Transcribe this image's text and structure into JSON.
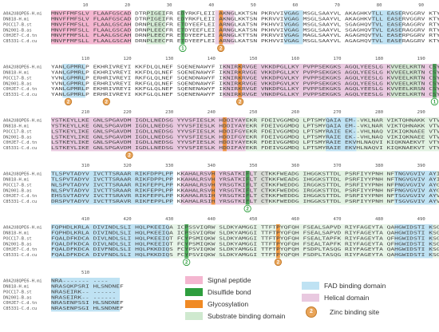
{
  "sequences": [
    "A0A2U8QPE6-H.mi",
    "DN818-H.mi",
    "POCC17-B.st",
    "DN2001-B.as",
    "C0HJE7-C.d.tn",
    "C85331-C.d.cu"
  ],
  "blocks": [
    {
      "ruler_numbers": [
        "10",
        "20",
        "30",
        "40",
        "50",
        "60",
        "70",
        "80",
        "90",
        "100"
      ],
      "rows": [
        "MNVFFMFSLV FLAAFGSCAD DTRPIGEIFR EDYRKFLEII AKNGLKKTSN PKRVVIVGAG MSGLSAAYVL AKAGHKVTLL EASERVGGRV KTYRNKEEGW",
        "MNVFFMFSLV FLAAFGSCAD DTRPIGEIFR EDYRKFLEII AKNGLKKTSN PKRVVIVGAG MSGLSAAYVL AKAGHKVTLL EASERVGGRV KTYRNKEEGW",
        "MNVFFMFSLL FLAALGSCAH DRNPLEECFR ETDYEEFLEI ARNGLKATSN PKHVVIVGAG MSGLSAAYVL SGAGHQVTVL EASERAGGRV RTYRNDKEGW",
        "MNVFFMFSLL FLAALGSCAD DRNPLEECFR ETDYEEFLEI ARNGLKATSN PKHVVIVGAG MSGLSAAYVL SGAGHQVTVL EASERAGGRV RTYRNDKEGW",
        "MNVFFMFSLL FLAALGSCAH DRNPLEECFR ETDYEEFLEI ARNGLKTTSN PKRVVIVGAG MAGLSAAYVL AGAGHQVTVL EASERPGGRV RTYR--KKGW",
        "MNVFFMFSLL FLAALGSCAH DRNPLEECFR ETDYEEFLEI ARNGLKATSN PKHVVIVGAG MSGLSAAYVL AGAGHQVTVL EASERAGGRV KTYR--KEGW"
      ]
    },
    {
      "ruler_numbers": [
        "110",
        "120",
        "130",
        "140",
        "150",
        "160",
        "170",
        "180",
        "190",
        "200"
      ],
      "rows": [
        "YANLGPMRLP EKHRIVREYI KKFDLQLNEF SQENENAWYF IKNIRKRVGE VKKDPGLLKY PVPPSEKGKS AGQLYEESLG KVVEELKRTN CSYMLNKYDT",
        "YANLGPMRLP EKHRIVREYI KKFDLQLNEF SQENENAWYF IKNIRKRVGE VKKDPGLLKY PVPPSEKGKS AGQLYEESLG KVVEELKRTN CSYMLNKYDT",
        "YVNLGPMRLP ERHRIVREYI RKFGLQLNEF SQENDNAWYF IKNIRKRVGE VKKDPGVLKY PVPPSEKGKS AGQLYEESLG KVVEELKRTN CSYILNKYDT",
        "YVNLGPMRLP ERHRIVREYI RKFGLQLNEF SQENDNAWYF IKNIRKRVGE VKKDPGVLKY PVPPSEKGKS AGQLYEESLG KVVEELKRTN CSYILNKYDT",
        "YANLGPMRLP EKHRIVREYI KKFGLQLNEF SQENENAWYF IKNIRKRVGE VNKDPGLLKY PVPPSEKGKS AGQLYEESLG KVVEELKRSN CSYILNKYDT",
        "YANLGPMRLP ERHRIVREYI KKFGLQLNEF SQENENAWYF IKNIRKRVGE VNKDPGLLKY PVPPSEKGKS AGQLYEESLG KVVEELKRTN CSYILNKYDT"
      ]
    },
    {
      "ruler_numbers": [
        "210",
        "220",
        "230",
        "240",
        "250",
        "260",
        "270",
        "280",
        "290",
        "300"
      ],
      "rows": [
        "YSTKEYLLKE GNLSPGAVDM IGDLLNEDSG YYVSFIESLK HDDIYAYEKR FDEIVGGMDQ LPTSMYQAIA EM--VKLNAR VIKTQHNAKK VTVTYQTSQK",
        "YSTKEYLLKE GNLSPGAVDM IGDLLNEDSG YYVSFIESLK HDDIYAYEKR FDEIVGGMDQ LPTSMYQAIA EM--VKLNAR VIKTQHNAKK VTVTYQTSQK",
        "LSTKEYLIKE GNLSPGAVDM IGDLLNEDSG YYVSFIESLK HDDIFGYEKR FDEIVGGMDQ LPTSMYRAIE EK--VHLNAQ VIKIQKNAEE VTVTYQTSAK",
        "LSTKEYLIKE GNLSPGAVDM IGDLLNEDSG YYVSFIESLK HDDIFGYEKR FDEIVGGMDQ LPTSMYRAIE EK--VHLNAQ VIKIQKNAEE VTVTYQTSAK",
        "LSTKEYLIKE GNLSPGAVDM IGDLLNEDSG YYVSFIESLK HDDIYAYEKR FDEIVGGMDQ LPTSMYRAIE EKVHLNAQVI KIQKNAEKVT VTYQTSAK--",
        "LSTKEYLIKE GNLSPGAVDM IGDLLNEDSG YYVSFIESLK HDDIFAYEKR FDEIVGGMDQ LPTSMYRAIE EKVHLNAQVI KIQKNAEKVT VTYQTSAK--"
      ]
    },
    {
      "ruler_numbers": [
        "310",
        "320",
        "330",
        "340",
        "350",
        "360",
        "370",
        "380",
        "390",
        "400"
      ],
      "rows": [
        "TLSPVTADYV IVCTTSRAAR RIKFDPPLPP KKAHALRSVH YRSATKIFLT CTKKFWEADG IHGGKSTTDL PSRFIYYPNH NFTNGVGVIV AYILADDADF",
        "TLSPVTADYV IVCTTSRAAR RIKFDPPLPP KKAHALRSVH YRSATKIFLT CTKKFWEADG IHGGKSTTDL PSRFIYYPNH NFTNGVGVIV AYILADDADF",
        "NLSPVTADYV IVCTTSRAAR RIKFEPPLPP KKAHALRSVH YRSGTKIFLT CTKKFWEDDG IRGGKSTTDL PSRFIYYPNH NFPNGVGVIV AYGIGDDANY",
        "NLSPVTADYV IVCTTSRAAR RIKFEPPLPP KKAHALRSVH YRSGTKIFLT CTKKFWEDDG IRGGKSTTDL PSRFIYYPNH NFPNGVGVIV AYGIGDDANY",
        "EHSSVTADYV IVCTTSRAVR RIKFEPPLPP KKAHALRSIH YRSGTKIFLT CTKKFWEDDG IHGGKSTTDL PSRFIYYPNH NFTSGVGVIV AYVLADDSDF",
        "DRSPVTADYV IVCTTSRAVR RIKFEPPLPP KKAHALRSIH YRSGTKIFLT CTKKFWEDDG IHGGKSTTDL PSRFIYYPNH NFTSGVGVIV AYVLADDSDF"
      ]
    },
    {
      "ruler_numbers": [
        "410",
        "420",
        "430",
        "440",
        "450",
        "460",
        "470",
        "480",
        "490",
        "500"
      ],
      "rows": [
        "FQPHDLKRLA DIVINDLSLI HQLPKEEIQA ICPSSVIQRW SLDKYAMGGI TTFTPYQFQH FSEALSAPVD RIYFAGEYTA QAHGWIDSTI KSGLRAARDV",
        "FQPHDLKRLA DIVINDLSLI HQLPKEEIQA ICPSSVIQRW SLDKYAMGGI TTFTPYQFQH FSEALSAPVD RIYFAGEYTA QAHGWIDSTI KSGLRAARDV",
        "FQALDFKDCA DIVLNDLSLI HQLPKEEIQT FCYPSMIQKW SLDKYAMGGI TTFTPYQFQH FSEALTAPFK RIYFAGEYTA QFHGWIDSTI KSGLTAARDV",
        "FQALDFKDCA DIVLNDLSLI HQLPKEEIQT FCYPSMIQKW SLDKYAMGGI TTFTPYQFQH FSEALTAPFK RIYFAGEYTA QFHGWIDSTI KSGLTAARDV",
        "FQALDFKDCA DIVFNDLSLI HQLPKKDIQS FCYPSVIQKW SLDKYAMGGI TTFTPYQFQH FSDPLTASQG RIYFAGEYTA QAHGWIDSTI KSGLRAARDV",
        "FQALDFKDCA DIVFNDLSLI HQLPKKDIQS FCYPSVIQKW SLDKYAMGGI TTFTPYQFQH FSDPLTASQG RIYFAGEYTA QAHGWIDSTI KSGLRAARDV"
      ]
    },
    {
      "ruler_numbers": [
        "510"
      ],
      "rows": [
        "NRA------- ----",
        "NRASQKPSRI HLSNDNEF",
        "NRASEIRK-- ------",
        "NRASEIRK-- ------",
        "NRASENPSSI HLSNDNEF",
        "NRASENPSGI HLSNDNEF"
      ]
    }
  ],
  "markers": [
    {
      "type": "disulfide",
      "label": "1"
    },
    {
      "type": "glycosylation",
      "label": "2"
    },
    {
      "type": "zinc",
      "label": "2"
    },
    {
      "type": "zinc",
      "label": "2"
    },
    {
      "type": "disulfide",
      "label": "1"
    },
    {
      "type": "zinc",
      "label": "2"
    },
    {
      "type": "zinc",
      "label": "2"
    },
    {
      "type": "disulfide",
      "label": "2"
    },
    {
      "type": "disulfide",
      "label": "2"
    },
    {
      "type": "zinc",
      "label": "2"
    }
  ],
  "colors": {
    "signal_peptide": "#f4b6d0",
    "disulfide_bond": "#2e9e3e",
    "glycosylation": "#f08a24",
    "substrate_binding": "#cfe9cf",
    "fad_binding": "#bfe2f3",
    "helical": "#e9c9e0",
    "zinc_site": "#e9a55a"
  },
  "legend": [
    {
      "key": "signal_peptide",
      "label": "Signal peptide"
    },
    {
      "key": "disulfide_bond",
      "label": "Disulfide bond"
    },
    {
      "key": "glycosylation",
      "label": "Glycosylation"
    },
    {
      "key": "substrate_binding",
      "label": "Substrate binding domain"
    },
    {
      "key": "fad_binding",
      "label": "FAD binding domain"
    },
    {
      "key": "helical",
      "label": "Helical domain"
    },
    {
      "key": "zinc_site",
      "label": "Zinc binding site"
    }
  ]
}
